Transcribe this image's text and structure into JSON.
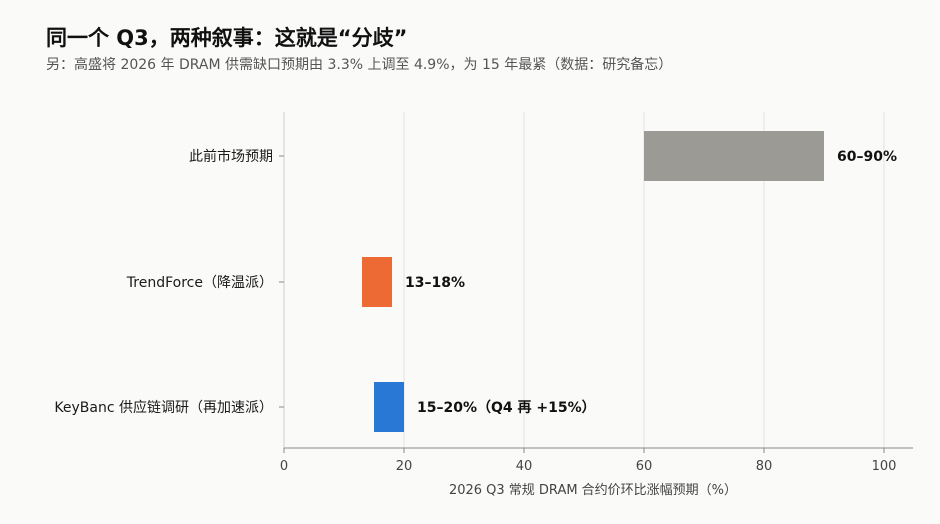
{
  "title": "同一个 Q3，两种叙事：这就是“分歧”",
  "subtitle": "另：高盛将 2026 年 DRAM 供需缺口预期由 3.3% 上调至 4.9%，为 15 年最紧（数据：研究备忘）",
  "chart_data": {
    "type": "bar",
    "orientation": "horizontal",
    "categories": [
      "此前市场预期",
      "TrendForce（降温派）",
      "KeyBanc 供应链调研（再加速派）"
    ],
    "ranges": [
      [
        60,
        90
      ],
      [
        13,
        18
      ],
      [
        15,
        20
      ]
    ],
    "data_labels": [
      "60–90%",
      "13–18%",
      "15–20%（Q4 再 +15%）"
    ],
    "colors": [
      "#9b9a94",
      "#ee6a35",
      "#2a78d6"
    ],
    "xlabel": "2026 Q3 常规 DRAM 合约价环比涨幅预期（%）",
    "ylabel": "",
    "xlim": [
      0,
      105
    ],
    "xticks": [
      0,
      20,
      40,
      60,
      80,
      100
    ],
    "grid": true,
    "legend": "none"
  }
}
